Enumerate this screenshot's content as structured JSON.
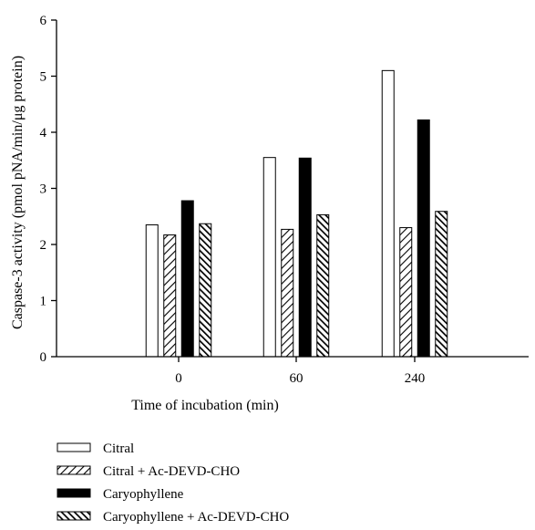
{
  "chart_data": {
    "type": "bar",
    "categories": [
      "0",
      "60",
      "240"
    ],
    "xlabel": "Time of incubation (min)",
    "ylabel": "Caspase-3 activity (pmol pNA/min/μg protein)",
    "ylim": [
      0,
      6
    ],
    "yticks": [
      0,
      1,
      2,
      3,
      4,
      5,
      6
    ],
    "grid": false,
    "legend_position": "bottom-left",
    "series": [
      {
        "name": "Citral",
        "values": [
          2.35,
          3.55,
          5.1
        ],
        "fill": "white",
        "color": "#000000"
      },
      {
        "name": "Citral + Ac-DEVD-CHO",
        "values": [
          2.17,
          2.27,
          2.3
        ],
        "fill": "hatch-back",
        "color": "#000000"
      },
      {
        "name": "Caryophyllene",
        "values": [
          2.78,
          3.54,
          4.22
        ],
        "fill": "solid",
        "color": "#000000"
      },
      {
        "name": "Caryophyllene + Ac-DEVD-CHO",
        "values": [
          2.37,
          2.53,
          2.59
        ],
        "fill": "hatch-forward-dense",
        "color": "#000000"
      }
    ]
  }
}
